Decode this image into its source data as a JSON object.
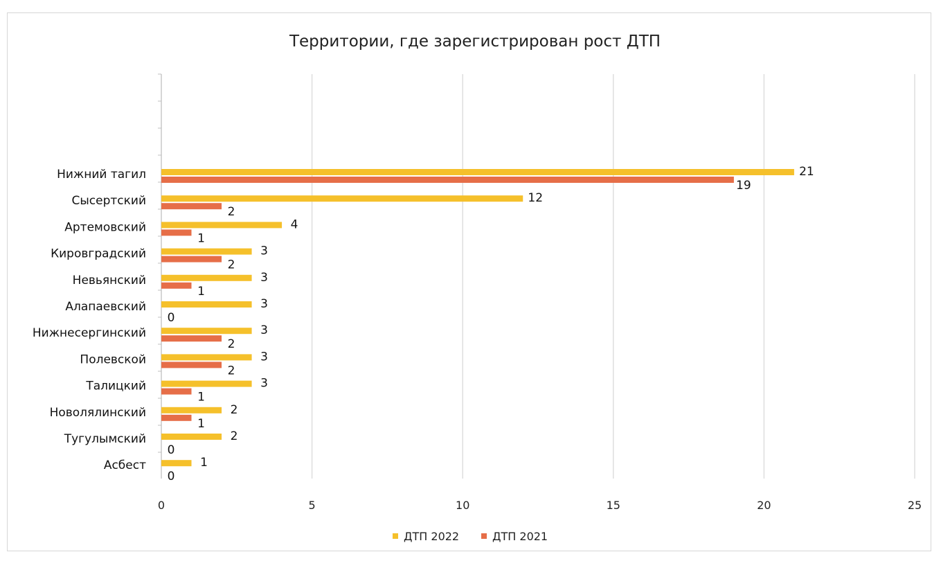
{
  "chart_data": {
    "type": "bar",
    "orientation": "horizontal",
    "title": "Территории, где зарегистрирован рост ДТП",
    "xlabel": "",
    "ylabel": "",
    "xlim": [
      0,
      25
    ],
    "x_ticks": [
      "0",
      "5",
      "10",
      "15",
      "20",
      "25"
    ],
    "grid": "vertical",
    "legend_position": "bottom",
    "categories": [
      "Нижний тагил",
      "Сысертский",
      "Артемовский",
      "Кировградский",
      "Невьянский",
      "Алапаевский",
      "Нижнесергинский",
      "Полевской",
      "Талицкий",
      "Новолялинский",
      "Тугулымский",
      "Асбест"
    ],
    "series": [
      {
        "name": "ДТП 2022",
        "color": "#f5c02b",
        "values": [
          21,
          12,
          4,
          3,
          3,
          3,
          3,
          3,
          3,
          2,
          2,
          1
        ]
      },
      {
        "name": "ДТП 2021",
        "color": "#e66e48",
        "values": [
          19,
          2,
          1,
          2,
          1,
          0,
          2,
          2,
          1,
          1,
          0,
          0
        ]
      }
    ]
  }
}
